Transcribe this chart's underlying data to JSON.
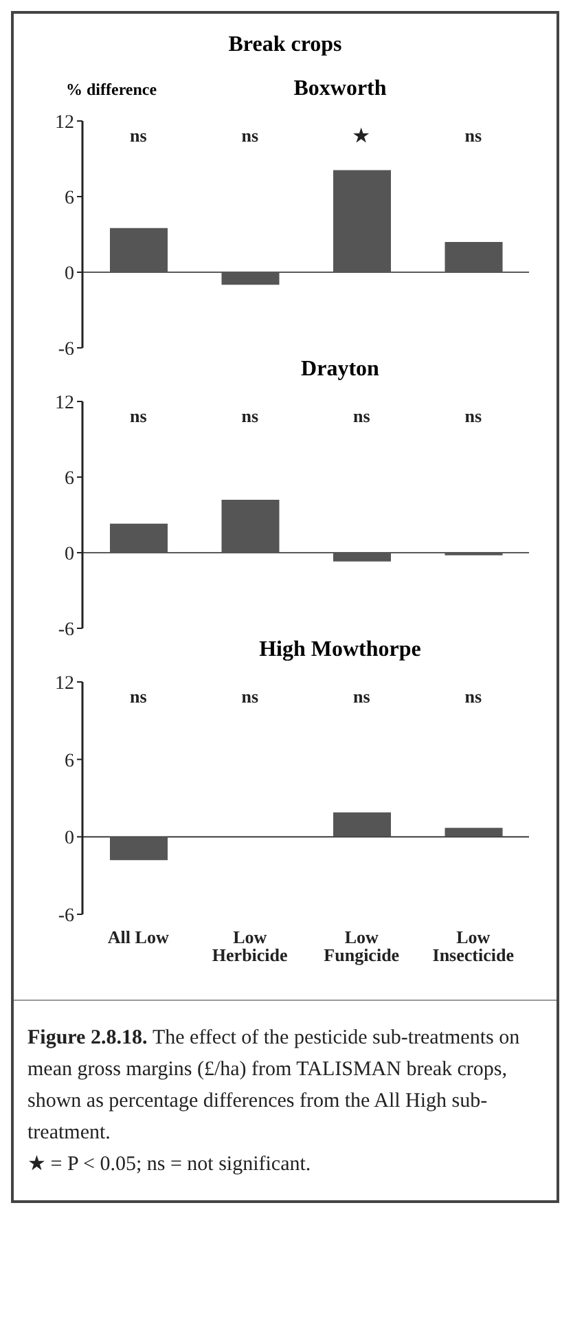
{
  "chart_data": [
    {
      "type": "bar",
      "title": "Break crops",
      "subtitle": "Boxworth",
      "ylabel": "% difference",
      "categories": [
        null,
        null,
        null,
        null
      ],
      "values": [
        3.5,
        -1.0,
        8.1,
        2.4
      ],
      "color": "#555555",
      "ylim": [
        -6,
        12
      ],
      "yticks": [
        -6,
        0,
        6,
        12
      ],
      "legend": false,
      "tick_labels": "y",
      "ref_lines": [
        {
          "axis": "y",
          "value": 0
        }
      ],
      "annotations": [
        "ns",
        "ns",
        "★",
        "ns"
      ]
    },
    {
      "type": "bar",
      "title": "Drayton",
      "categories": [
        null,
        null,
        null,
        null
      ],
      "values": [
        2.3,
        4.2,
        -0.7,
        -0.2
      ],
      "color": "#555555",
      "ylim": [
        -6,
        12
      ],
      "yticks": [
        -6,
        0,
        6,
        12
      ],
      "legend": false,
      "tick_labels": "y",
      "ref_lines": [
        {
          "axis": "y",
          "value": 0
        }
      ],
      "annotations": [
        "ns",
        "ns",
        "ns",
        "ns"
      ]
    },
    {
      "type": "bar",
      "title": "High Mowthorpe",
      "categories": [
        "All Low",
        "Low Herbicide",
        "Low Fungicide",
        "Low Insecticide"
      ],
      "values": [
        -1.8,
        0,
        1.9,
        0.7
      ],
      "color": "#555555",
      "ylim": [
        -6,
        12
      ],
      "yticks": [
        -6,
        0,
        6,
        12
      ],
      "legend": false,
      "ref_lines": [
        {
          "axis": "y",
          "value": 0
        }
      ],
      "annotations": [
        "ns",
        "ns",
        "ns",
        "ns",
        "Figure 2.8.18.",
        "The effect of the pesticide sub-treatments on mean gross margins (£/ha) from TALISMAN break crops, shown as percentage differences from the All High sub-treatment.",
        "★ = P < 0.05; ns = not significant."
      ]
    }
  ]
}
